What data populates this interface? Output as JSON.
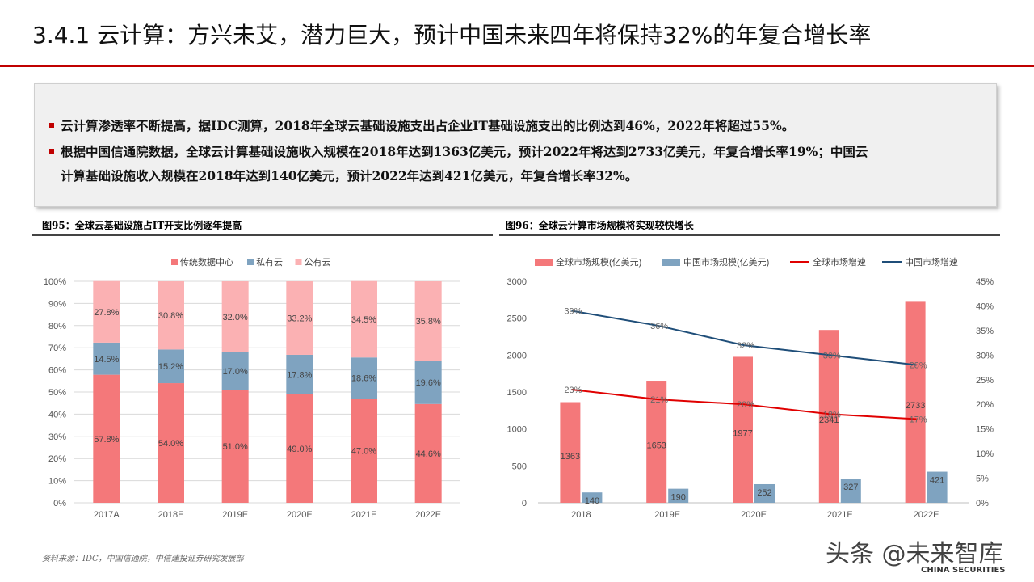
{
  "slide": {
    "title": "3.4.1 云计算：方兴未艾，潜力巨大，预计中国未来四年将保持32%的年复合增长率",
    "bullets": [
      "云计算渗透率不断提高，据IDC测算，2018年全球云基础设施支出占企业IT基础设施支出的比例达到46%，2022年将超过55%。",
      "根据中国信通院数据，全球云计算基础设施收入规模在2018年达到1363亿美元，预计2022年将达到2733亿美元，年复合增长率19%；中国云",
      "计算基础设施收入规模在2018年达到140亿美元，预计2022年达到421亿美元，年复合增长率32%。"
    ],
    "source": "资料来源：IDC，中国信通院，中信建投证券研究发展部",
    "watermark": "头条 @未来智库",
    "logo_text": "CHINA SECURITIES",
    "colors": {
      "accent": "#c00000"
    }
  },
  "chart_data": [
    {
      "type": "bar",
      "stacked": true,
      "figure_label": "图95：全球云基础设施占IT开支比例逐年提高",
      "categories": [
        "2017A",
        "2018E",
        "2019E",
        "2020E",
        "2021E",
        "2022E"
      ],
      "series": [
        {
          "name": "传统数据中心",
          "color": "#f4787a",
          "values": [
            57.8,
            54.0,
            51.0,
            49.0,
            47.0,
            44.6
          ],
          "labels": [
            "57.8%",
            "54.0%",
            "51.0%",
            "49.0%",
            "47.0%",
            "44.6%"
          ]
        },
        {
          "name": "私有云",
          "color": "#7fa3c0",
          "values": [
            14.5,
            15.2,
            17.0,
            17.8,
            18.6,
            19.6
          ],
          "labels": [
            "14.5%",
            "15.2%",
            "17.0%",
            "17.8%",
            "18.6%",
            "19.6%"
          ]
        },
        {
          "name": "公有云",
          "color": "#fbb1b3",
          "values": [
            27.8,
            30.8,
            32.0,
            33.2,
            34.5,
            35.8
          ],
          "labels": [
            "27.8%",
            "30.8%",
            "32.0%",
            "33.2%",
            "34.5%",
            "35.8%"
          ]
        }
      ],
      "ylim": [
        0,
        100
      ],
      "y_ticks": [
        "0%",
        "10%",
        "20%",
        "30%",
        "40%",
        "50%",
        "60%",
        "70%",
        "80%",
        "90%",
        "100%"
      ],
      "legend": "top",
      "grid": true
    },
    {
      "type": "bar",
      "combo": "bar+line",
      "figure_label": "图96：全球云计算市场规模将实现较快增长",
      "categories": [
        "2018",
        "2019E",
        "2020E",
        "2021E",
        "2022E"
      ],
      "bar_series": [
        {
          "name": "全球市场规模(亿美元)",
          "color": "#f4787a",
          "values": [
            1363,
            1653,
            1977,
            2341,
            2733
          ],
          "labels": [
            "1363",
            "1653",
            "1977",
            "2341",
            "2733"
          ]
        },
        {
          "name": "中国市场规模(亿美元)",
          "color": "#7fa3c0",
          "values": [
            140,
            190,
            252,
            327,
            421
          ],
          "labels": [
            "140",
            "190",
            "252",
            "327",
            "421"
          ]
        }
      ],
      "line_series": [
        {
          "name": "全球市场增速",
          "color": "#e00000",
          "values": [
            23,
            21,
            20,
            18,
            17
          ],
          "labels": [
            "23%",
            "21%",
            "20%",
            "18%",
            "17%"
          ]
        },
        {
          "name": "中国市场增速",
          "color": "#1f4e79",
          "values": [
            39,
            36,
            32,
            30,
            28
          ],
          "labels": [
            "39%",
            "36%",
            "32%",
            "30%",
            "28%"
          ]
        }
      ],
      "ylim": [
        0,
        3000
      ],
      "y_ticks": [
        "0",
        "500",
        "1000",
        "1500",
        "2000",
        "2500",
        "3000"
      ],
      "y2lim": [
        0,
        45
      ],
      "y2_ticks": [
        "0%",
        "5%",
        "10%",
        "15%",
        "20%",
        "25%",
        "30%",
        "35%",
        "40%",
        "45%"
      ],
      "legend": "top",
      "grid": false
    }
  ]
}
